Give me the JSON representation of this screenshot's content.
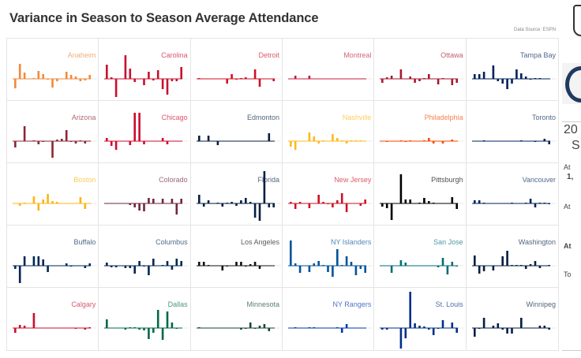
{
  "title": "Variance in Season to Season Average Attendance",
  "source": "Data Source: ESPN",
  "side_panel": {
    "lines": [
      "20",
      "S",
      "At",
      "1,",
      "At",
      "At",
      "To"
    ]
  },
  "chart_data": {
    "type": "bar",
    "title": "Variance in Season to Season Average Attendance",
    "layout": "small-multiples 6x5",
    "xlabel": "",
    "ylabel": "",
    "seasons_per_team": 17,
    "ylim": [
      -27,
      46
    ],
    "grid": false,
    "teams": [
      {
        "name": "Anaheim",
        "color": "#f08a3c",
        "values": [
          -12,
          19,
          8,
          0,
          1,
          10,
          6,
          -1,
          -11,
          -3,
          0,
          9,
          5,
          3,
          -3,
          -2,
          5
        ]
      },
      {
        "name": "Carolina",
        "color": "#c8102e",
        "values": [
          18,
          2,
          -23,
          0,
          30,
          13,
          -4,
          0,
          -8,
          9,
          -2,
          11,
          -13,
          -20,
          -3,
          -3,
          15
        ]
      },
      {
        "name": "Detroit",
        "color": "#ce1126",
        "values": [
          1,
          0,
          0,
          0,
          0,
          0,
          -6,
          6,
          -1,
          1,
          2,
          0,
          12,
          -10,
          0,
          0,
          -3
        ]
      },
      {
        "name": "Montreal",
        "color": "#c41e3a",
        "values": [
          0,
          4,
          0,
          0,
          4,
          0,
          0,
          0,
          0,
          0,
          0,
          0,
          0,
          0,
          0,
          0,
          0
        ]
      },
      {
        "name": "Ottawa",
        "color": "#a6192e",
        "values": [
          -5,
          2,
          4,
          0,
          12,
          0,
          3,
          -5,
          -3,
          1,
          6,
          0,
          -7,
          1,
          0,
          -8,
          -5
        ]
      },
      {
        "name": "Tampa Bay",
        "color": "#00205b",
        "values": [
          6,
          6,
          9,
          0,
          17,
          -3,
          -6,
          -13,
          -6,
          12,
          7,
          3,
          -1,
          1,
          1,
          0,
          0
        ]
      },
      {
        "name": "Arizona",
        "color": "#8c2633",
        "values": [
          -8,
          0,
          19,
          0,
          1,
          -4,
          -1,
          0,
          -21,
          2,
          3,
          14,
          -1,
          -3,
          1,
          -3,
          0
        ]
      },
      {
        "name": "Chicago",
        "color": "#cf0a2c",
        "values": [
          4,
          -6,
          -11,
          0,
          0,
          -5,
          36,
          36,
          -4,
          0,
          0,
          0,
          4,
          -4,
          0,
          0,
          0
        ]
      },
      {
        "name": "Edmonton",
        "color": "#041e42",
        "values": [
          7,
          0,
          7,
          0,
          -5,
          0,
          0,
          0,
          0,
          0,
          0,
          0,
          0,
          0,
          0,
          10,
          0
        ]
      },
      {
        "name": "Nashville",
        "color": "#ffb81c",
        "values": [
          -7,
          -11,
          0,
          0,
          11,
          6,
          -3,
          1,
          0,
          9,
          4,
          1,
          -3,
          1,
          1,
          1,
          0
        ]
      },
      {
        "name": "Philadelphia",
        "color": "#f74902",
        "values": [
          0,
          -1,
          0,
          0,
          1,
          -1,
          1,
          0,
          0,
          1,
          4,
          -3,
          0,
          -3,
          0,
          2,
          0
        ]
      },
      {
        "name": "Toronto",
        "color": "#00205b",
        "values": [
          0,
          0,
          1,
          0,
          0,
          0,
          0,
          0,
          0,
          0,
          1,
          0,
          0,
          -1,
          0,
          3,
          -4
        ]
      },
      {
        "name": "Boston",
        "color": "#fcb514",
        "values": [
          0,
          -3,
          1,
          0,
          9,
          -9,
          5,
          12,
          3,
          2,
          0,
          0,
          0,
          0,
          8,
          -7,
          0
        ]
      },
      {
        "name": "Colorado",
        "color": "#6f263d",
        "values": [
          0,
          0,
          0,
          0,
          0,
          -2,
          -5,
          -9,
          -10,
          7,
          6,
          0,
          6,
          0,
          6,
          -14,
          6
        ]
      },
      {
        "name": "Florida",
        "color": "#041e42",
        "values": [
          11,
          -4,
          4,
          0,
          1,
          -4,
          1,
          2,
          -3,
          4,
          7,
          2,
          -18,
          -22,
          41,
          -5,
          -5
        ]
      },
      {
        "name": "New Jersey",
        "color": "#ce1126",
        "values": [
          2,
          -7,
          2,
          0,
          -6,
          0,
          11,
          2,
          -1,
          -5,
          4,
          13,
          -11,
          0,
          0,
          -3,
          5
        ]
      },
      {
        "name": "Pittsburgh",
        "color": "#000000",
        "values": [
          -4,
          -6,
          -21,
          0,
          37,
          5,
          5,
          0,
          1,
          7,
          3,
          1,
          0,
          0,
          0,
          8,
          -7
        ]
      },
      {
        "name": "Vancouver",
        "color": "#00205b",
        "values": [
          4,
          4,
          1,
          0,
          0,
          0,
          0,
          0,
          1,
          0,
          0,
          1,
          6,
          -5,
          1,
          1,
          -1
        ]
      },
      {
        "name": "Buffalo",
        "color": "#002654",
        "values": [
          -4,
          -22,
          12,
          0,
          12,
          12,
          8,
          -8,
          0,
          0,
          0,
          3,
          -1,
          0,
          0,
          -3,
          3
        ]
      },
      {
        "name": "Columbus",
        "color": "#002654",
        "values": [
          4,
          -2,
          -2,
          0,
          -3,
          -3,
          -10,
          6,
          -1,
          -12,
          9,
          0,
          1,
          6,
          -5,
          9,
          6
        ]
      },
      {
        "name": "Los Angeles",
        "color": "#111111",
        "values": [
          5,
          5,
          1,
          0,
          0,
          -6,
          -1,
          0,
          5,
          5,
          -1,
          2,
          5,
          -4,
          0,
          0,
          0
        ]
      },
      {
        "name": "NY Islanders",
        "color": "#00539b",
        "values": [
          32,
          3,
          -9,
          0,
          -8,
          3,
          6,
          1,
          -8,
          -14,
          21,
          1,
          12,
          5,
          -12,
          -4,
          -9
        ]
      },
      {
        "name": "San Jose",
        "color": "#006d75",
        "values": [
          0,
          0,
          -9,
          0,
          7,
          4,
          0,
          0,
          0,
          0,
          0,
          0,
          -2,
          10,
          -11,
          5,
          -1
        ]
      },
      {
        "name": "Washington",
        "color": "#041e42",
        "values": [
          13,
          -10,
          -7,
          0,
          -6,
          0,
          12,
          19,
          1,
          1,
          1,
          -4,
          2,
          6,
          -3,
          0,
          1
        ]
      },
      {
        "name": "Calgary",
        "color": "#c8102e",
        "values": [
          -6,
          4,
          3,
          0,
          19,
          0,
          0,
          0,
          0,
          0,
          0,
          0,
          0,
          -1,
          0,
          -2,
          1
        ]
      },
      {
        "name": "Dallas",
        "color": "#006847",
        "values": [
          11,
          0,
          0,
          0,
          -2,
          1,
          1,
          -2,
          -3,
          -14,
          -6,
          23,
          -15,
          21,
          7,
          -1,
          0
        ]
      },
      {
        "name": "Minnesota",
        "color": "#154734",
        "values": [
          1,
          0,
          0,
          0,
          0,
          0,
          0,
          0,
          0,
          -2,
          -1,
          7,
          -1,
          3,
          5,
          -4,
          0
        ]
      },
      {
        "name": "NY Rangers",
        "color": "#0038a8",
        "values": [
          0,
          1,
          0,
          0,
          1,
          1,
          0,
          0,
          0,
          0,
          1,
          -6,
          5,
          0,
          0,
          0,
          0
        ]
      },
      {
        "name": "St. Louis",
        "color": "#002f87",
        "values": [
          -2,
          -2,
          0,
          0,
          -26,
          -13,
          46,
          6,
          3,
          2,
          -2,
          -9,
          -1,
          10,
          0,
          7,
          -6
        ]
      },
      {
        "name": "Winnipeg",
        "color": "#041e42",
        "values": [
          -11,
          -1,
          13,
          0,
          3,
          6,
          -2,
          -7,
          -7,
          0,
          13,
          0,
          0,
          0,
          3,
          3,
          -2
        ]
      }
    ]
  }
}
